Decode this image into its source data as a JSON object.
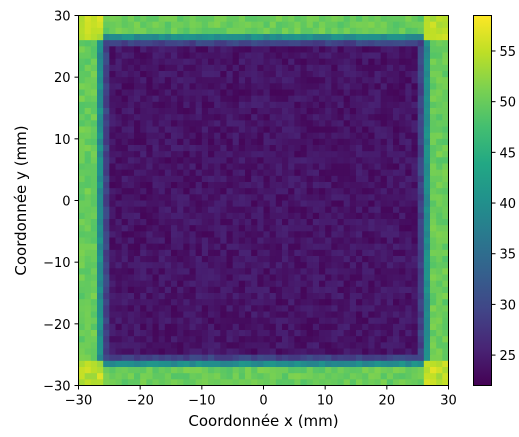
{
  "chart_data": {
    "type": "heatmap",
    "title": "",
    "xlabel": "Coordonnée x (mm)",
    "ylabel": "Coordonnée y (mm)",
    "xlim": [
      -30,
      30
    ],
    "ylim": [
      -30,
      30
    ],
    "grid": false,
    "x_ticks": [
      -30,
      -20,
      -10,
      0,
      10,
      20,
      30
    ],
    "y_ticks": [
      -30,
      -20,
      -10,
      0,
      10,
      20,
      30
    ],
    "x_tick_labels": [
      "−30",
      "−20",
      "−10",
      "0",
      "10",
      "20",
      "30"
    ],
    "y_tick_labels": [
      "−30",
      "−20",
      "−10",
      "0",
      "10",
      "20",
      "30"
    ],
    "grid_size": 60,
    "field_description": {
      "inner_square_halfwidth_mm": 25,
      "inner_value": 24,
      "transition_width_mm": 2.5,
      "outer_value": 50,
      "corner_value": 56,
      "noise_amplitude": 1.5
    },
    "colorbar": {
      "colormap": "viridis",
      "vmin": 22,
      "vmax": 58.5,
      "ticks": [
        25,
        30,
        35,
        40,
        45,
        50,
        55
      ],
      "tick_labels": [
        "25",
        "30",
        "35",
        "40",
        "45",
        "50",
        "55"
      ]
    }
  }
}
